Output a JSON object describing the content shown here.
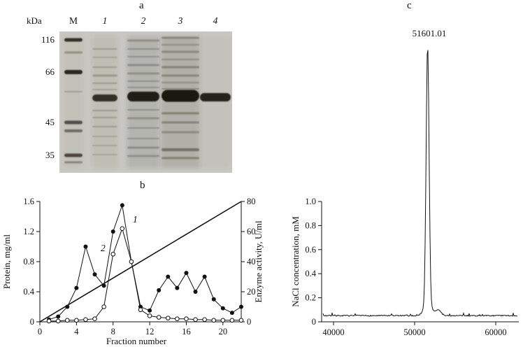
{
  "figure": {
    "panel_a": {
      "label": "a",
      "unit": "kDa",
      "lanes": [
        "M",
        "1",
        "2",
        "3",
        "4"
      ],
      "markers": [
        "116",
        "66",
        "45",
        "35"
      ]
    },
    "panel_b": {
      "label": "b"
    },
    "panel_c": {
      "label": "c"
    }
  },
  "chart_data": [
    {
      "type": "line",
      "panel": "b",
      "xlabel": "Fraction number",
      "ylabel_left": "Protein, mg/ml",
      "ylabel_right": "Enzyme activity, U/ml",
      "ylabel_gradient": "NaCl concentration, mM",
      "xlim": [
        0,
        22
      ],
      "xticks": [
        "0",
        "4",
        "8",
        "12",
        "16",
        "20"
      ],
      "ylim_left": [
        0,
        1.6
      ],
      "yticks_left": [
        "0",
        "0.4",
        "0.8",
        "1.2",
        "1.6"
      ],
      "ylim_right": [
        0,
        80
      ],
      "yticks_right": [
        "0",
        "20",
        "40",
        "60",
        "80"
      ],
      "ylim_gradient": [
        0,
        1.0
      ],
      "yticks_gradient": [
        "0",
        "0.2",
        "0.4",
        "0.6",
        "0.8",
        "1.0"
      ],
      "grid": false,
      "legend_position": "inline-labels",
      "series": [
        {
          "name": "1",
          "axis": "left",
          "marker": "filled-circle",
          "x": [
            1,
            2,
            3,
            4,
            5,
            6,
            7,
            8,
            9,
            10,
            11,
            12,
            13,
            14,
            15,
            16,
            17,
            18,
            19,
            20,
            21,
            22
          ],
          "values": [
            0.03,
            0.07,
            0.2,
            0.45,
            1.0,
            0.63,
            0.48,
            1.2,
            1.55,
            0.8,
            0.2,
            0.15,
            0.42,
            0.6,
            0.45,
            0.65,
            0.4,
            0.6,
            0.3,
            0.18,
            0.12,
            0.2
          ]
        },
        {
          "name": "2",
          "axis": "right",
          "marker": "open-circle",
          "x": [
            1,
            2,
            3,
            4,
            5,
            6,
            7,
            8,
            9,
            10,
            11,
            12,
            13,
            14,
            15,
            16,
            17,
            18,
            19,
            20,
            21,
            22
          ],
          "values": [
            0.5,
            0.5,
            1,
            1,
            1.5,
            2,
            10,
            45,
            62,
            40,
            8,
            4,
            3,
            2.5,
            2,
            2,
            1.5,
            1.5,
            1,
            1,
            1,
            1
          ]
        },
        {
          "name": "NaCl gradient",
          "axis": "gradient",
          "marker": "none",
          "x": [
            0,
            22
          ],
          "values": [
            0,
            1.0
          ]
        }
      ]
    },
    {
      "type": "line",
      "panel": "c",
      "xlabel": "",
      "xlim": [
        38700,
        62700
      ],
      "xticks": [
        "40000",
        "50000",
        "60000"
      ],
      "peak_label": "51601.01",
      "peak_mz": 51601.01,
      "secondary_bump_mz": 52900,
      "baseline": "flat-noise"
    }
  ]
}
